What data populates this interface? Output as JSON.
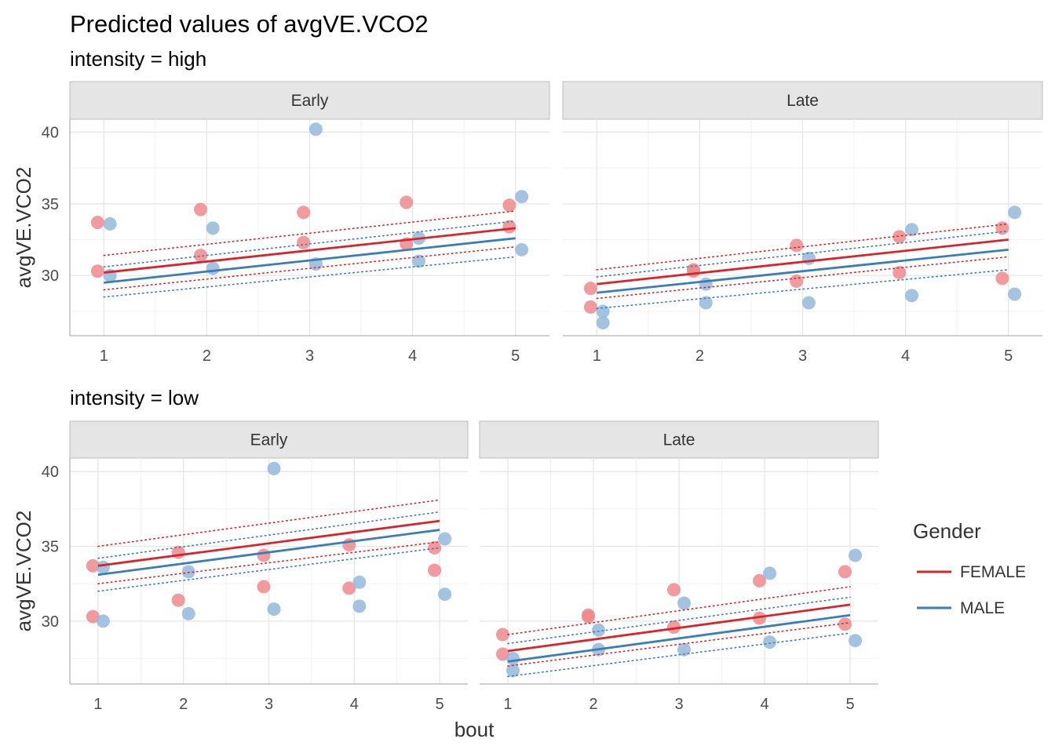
{
  "chart_data": {
    "type": "scatter",
    "title": "Predicted values of avgVE.VCO2",
    "xlabel": "bout",
    "ylabel": "avgVE.VCO2",
    "xlim": [
      0.67,
      5.33
    ],
    "ylim": [
      25.8,
      40.9
    ],
    "x_ticks": [
      "1",
      "2",
      "3",
      "4",
      "5"
    ],
    "y_ticks": [
      "30",
      "35",
      "40"
    ],
    "legend": {
      "title": "Gender",
      "position": "right",
      "entries": [
        {
          "label": "FEMALE",
          "color": "#d7262b"
        },
        {
          "label": "MALE",
          "color": "#3a7eb8"
        }
      ]
    },
    "point_colors": {
      "FEMALE": "#ef8a8d",
      "MALE": "#93b9dc"
    },
    "groups": [
      {
        "label": "intensity = high",
        "panels": [
          {
            "strip": "Early",
            "points": {
              "FEMALE": [
                [
                  1,
                  33.7
                ],
                [
                  1,
                  30.3
                ],
                [
                  2,
                  34.6
                ],
                [
                  2,
                  31.4
                ],
                [
                  3,
                  34.4
                ],
                [
                  3,
                  32.3
                ],
                [
                  4,
                  35.1
                ],
                [
                  4,
                  32.2
                ],
                [
                  5,
                  34.9
                ],
                [
                  5,
                  33.4
                ]
              ],
              "MALE": [
                [
                  1,
                  33.6
                ],
                [
                  1,
                  30.0
                ],
                [
                  2,
                  33.3
                ],
                [
                  2,
                  30.5
                ],
                [
                  3,
                  40.2
                ],
                [
                  3,
                  30.8
                ],
                [
                  4,
                  32.6
                ],
                [
                  4,
                  31.0
                ],
                [
                  5,
                  35.5
                ],
                [
                  5,
                  31.8
                ]
              ]
            },
            "lines": {
              "FEMALE": {
                "start": 30.2,
                "end": 33.3,
                "lower_start": 29.0,
                "lower_end": 32.0,
                "upper_start": 31.4,
                "upper_end": 34.5
              },
              "MALE": {
                "start": 29.5,
                "end": 32.6,
                "lower_start": 28.5,
                "lower_end": 31.3,
                "upper_start": 30.6,
                "upper_end": 33.8
              }
            }
          },
          {
            "strip": "Late",
            "points": {
              "FEMALE": [
                [
                  1,
                  29.1
                ],
                [
                  1,
                  27.8
                ],
                [
                  2,
                  30.4
                ],
                [
                  2,
                  30.3
                ],
                [
                  3,
                  32.1
                ],
                [
                  3,
                  29.6
                ],
                [
                  4,
                  32.7
                ],
                [
                  4,
                  30.2
                ],
                [
                  5,
                  33.3
                ],
                [
                  5,
                  29.8
                ]
              ],
              "MALE": [
                [
                  1,
                  27.5
                ],
                [
                  1,
                  26.7
                ],
                [
                  2,
                  29.4
                ],
                [
                  2,
                  28.1
                ],
                [
                  3,
                  31.2
                ],
                [
                  3,
                  28.1
                ],
                [
                  4,
                  33.2
                ],
                [
                  4,
                  28.6
                ],
                [
                  5,
                  34.4
                ],
                [
                  5,
                  28.7
                ]
              ]
            },
            "lines": {
              "FEMALE": {
                "start": 29.4,
                "end": 32.5,
                "lower_start": 28.4,
                "lower_end": 31.3,
                "upper_start": 30.4,
                "upper_end": 33.6
              },
              "MALE": {
                "start": 28.8,
                "end": 31.8,
                "lower_start": 27.7,
                "lower_end": 30.4,
                "upper_start": 29.9,
                "upper_end": 33.1
              }
            }
          }
        ]
      },
      {
        "label": "intensity = low",
        "panels": [
          {
            "strip": "Early",
            "points": {
              "FEMALE": [
                [
                  1,
                  33.7
                ],
                [
                  1,
                  30.3
                ],
                [
                  2,
                  34.6
                ],
                [
                  2,
                  31.4
                ],
                [
                  3,
                  34.4
                ],
                [
                  3,
                  32.3
                ],
                [
                  4,
                  35.1
                ],
                [
                  4,
                  32.2
                ],
                [
                  5,
                  34.9
                ],
                [
                  5,
                  33.4
                ]
              ],
              "MALE": [
                [
                  1,
                  33.6
                ],
                [
                  1,
                  30.0
                ],
                [
                  2,
                  33.3
                ],
                [
                  2,
                  30.5
                ],
                [
                  3,
                  40.2
                ],
                [
                  3,
                  30.8
                ],
                [
                  4,
                  32.6
                ],
                [
                  4,
                  31.0
                ],
                [
                  5,
                  35.5
                ],
                [
                  5,
                  31.8
                ]
              ]
            },
            "lines": {
              "FEMALE": {
                "start": 33.7,
                "end": 36.7,
                "lower_start": 32.5,
                "lower_end": 35.3,
                "upper_start": 35.0,
                "upper_end": 38.1
              },
              "MALE": {
                "start": 33.1,
                "end": 36.1,
                "lower_start": 32.0,
                "lower_end": 34.9,
                "upper_start": 34.2,
                "upper_end": 37.3
              }
            }
          },
          {
            "strip": "Late",
            "points": {
              "FEMALE": [
                [
                  1,
                  29.1
                ],
                [
                  1,
                  27.8
                ],
                [
                  2,
                  30.4
                ],
                [
                  2,
                  30.3
                ],
                [
                  3,
                  32.1
                ],
                [
                  3,
                  29.6
                ],
                [
                  4,
                  32.7
                ],
                [
                  4,
                  30.2
                ],
                [
                  5,
                  33.3
                ],
                [
                  5,
                  29.8
                ]
              ],
              "MALE": [
                [
                  1,
                  27.5
                ],
                [
                  1,
                  26.7
                ],
                [
                  2,
                  29.4
                ],
                [
                  2,
                  28.1
                ],
                [
                  3,
                  31.2
                ],
                [
                  3,
                  28.1
                ],
                [
                  4,
                  33.2
                ],
                [
                  4,
                  28.6
                ],
                [
                  5,
                  34.4
                ],
                [
                  5,
                  28.7
                ]
              ]
            },
            "lines": {
              "FEMALE": {
                "start": 28.0,
                "end": 31.1,
                "lower_start": 27.0,
                "lower_end": 29.9,
                "upper_start": 29.1,
                "upper_end": 32.3
              },
              "MALE": {
                "start": 27.3,
                "end": 30.4,
                "lower_start": 26.3,
                "lower_end": 29.2,
                "upper_start": 28.5,
                "upper_end": 31.6
              }
            }
          }
        ]
      }
    ]
  }
}
